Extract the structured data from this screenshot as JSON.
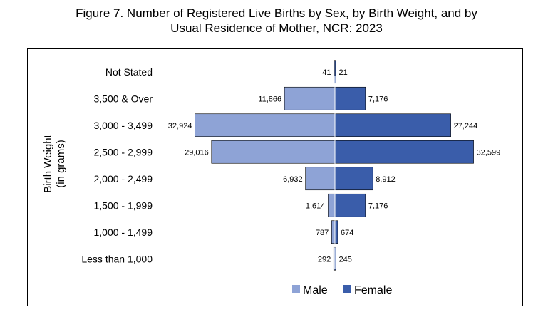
{
  "chart_data": {
    "type": "bar",
    "orientation": "horizontal-population-pyramid",
    "title_line1": "Figure 7. Number of Registered Live Births by Sex, by Birth Weight, and by",
    "title_line2": "Usual Residence of Mother, NCR: 2023",
    "ylabel_line1": "Birth Weight",
    "ylabel_line2": "(in grams)",
    "categories": [
      "Not Stated",
      "3,500 & Over",
      "3,000 - 3,499",
      "2,500 - 2,999",
      "2,000 - 2,499",
      "1,500 - 1,999",
      "1,000 - 1,499",
      "Less than 1,000"
    ],
    "series": [
      {
        "name": "Male",
        "color": "#8EA3D6",
        "values": [
          41,
          11866,
          32924,
          29016,
          6932,
          1614,
          787,
          292
        ],
        "labels": [
          "41",
          "11,866",
          "32,924",
          "29,016",
          "6,932",
          "1,614",
          "787",
          "292"
        ]
      },
      {
        "name": "Female",
        "color": "#3A5DAA",
        "values": [
          21,
          7176,
          27244,
          32599,
          8912,
          7176,
          674,
          245
        ],
        "labels": [
          "21",
          "7,176",
          "27,244",
          "32,599",
          "8,912",
          "7,176",
          "674",
          "245"
        ]
      }
    ],
    "xlim": [
      -33000,
      33000
    ],
    "legend_position": "bottom"
  }
}
